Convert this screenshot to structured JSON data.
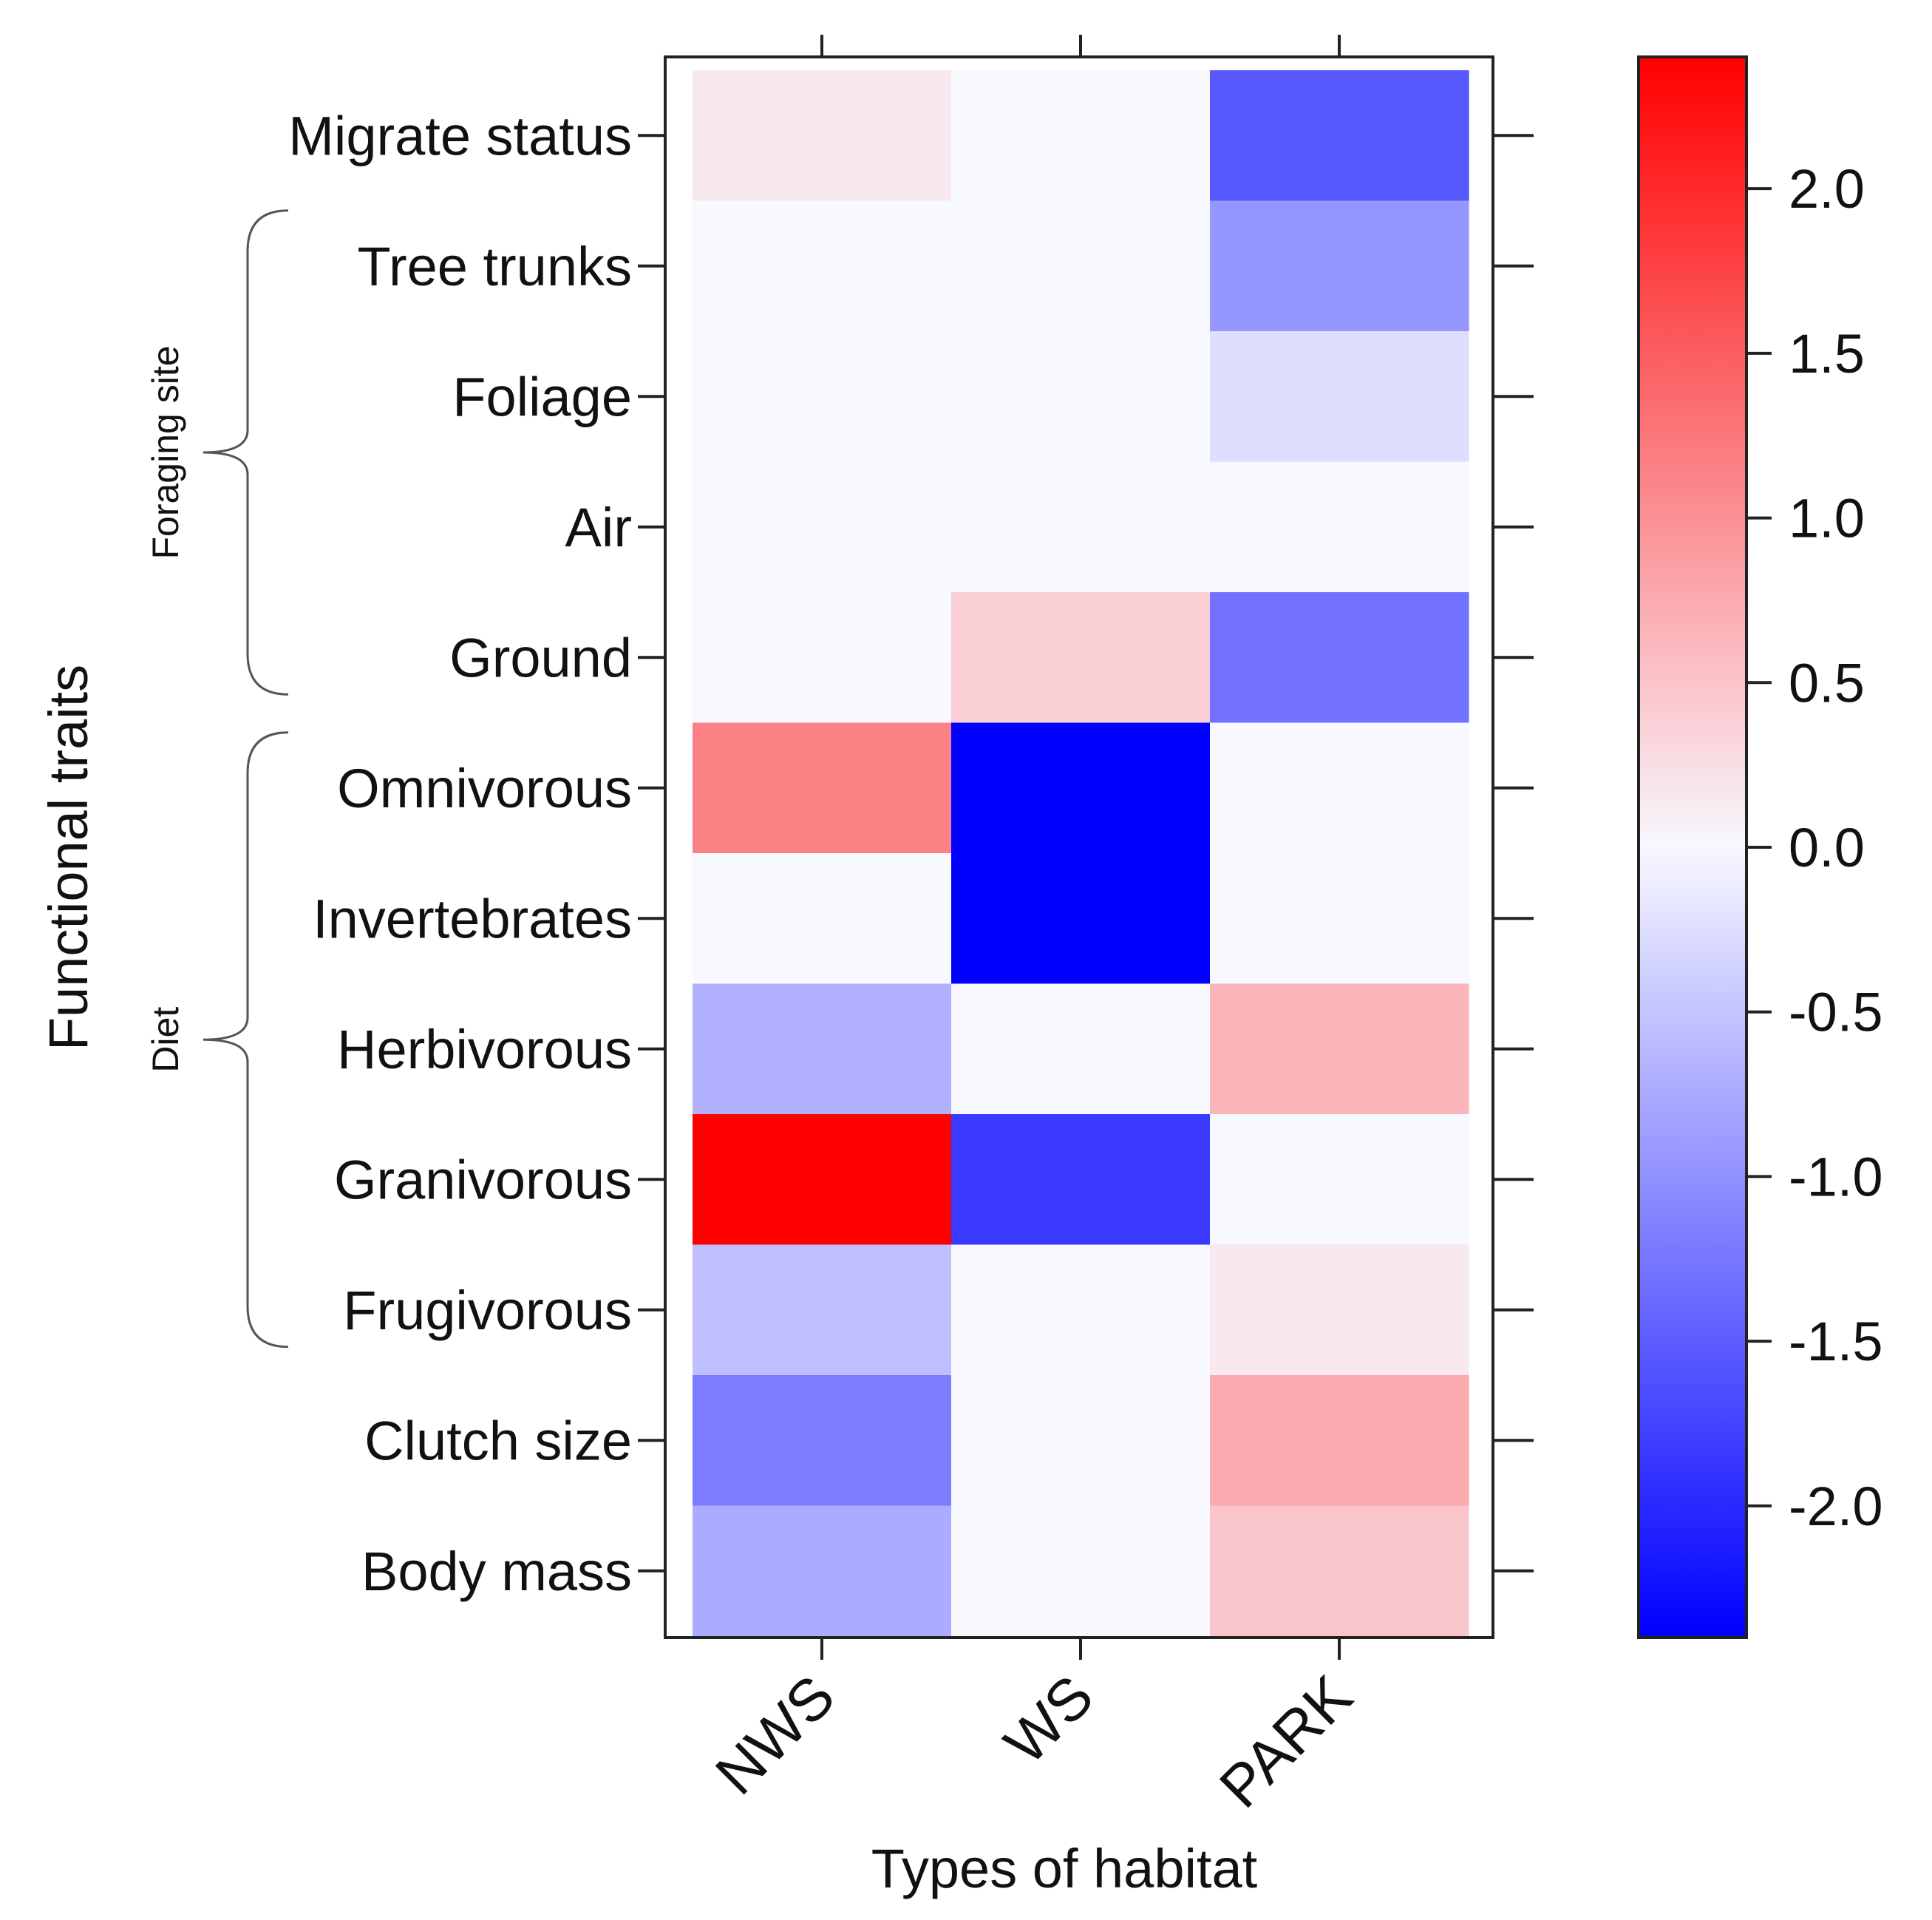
{
  "chart_data": {
    "type": "heatmap",
    "title": "",
    "xlabel": "Types of habitat",
    "ylabel": "Functional traits",
    "columns": [
      "NWS",
      "WS",
      "PARK"
    ],
    "rows": [
      "Migrate status",
      "Tree trunks",
      "Foliage",
      "Air",
      "Ground",
      "Omnivorous",
      "Invertebrates",
      "Herbivorous",
      "Granivorous",
      "Frugivorous",
      "Clutch size",
      "Body mass"
    ],
    "values": [
      [
        0.15,
        0.0,
        -1.55
      ],
      [
        0.0,
        0.0,
        -0.95
      ],
      [
        0.0,
        0.0,
        -0.25
      ],
      [
        0.0,
        0.0,
        0.0
      ],
      [
        0.0,
        0.4,
        -1.3
      ],
      [
        1.15,
        -2.4,
        0.0
      ],
      [
        0.0,
        -2.4,
        0.0
      ],
      [
        -0.7,
        0.0,
        0.65
      ],
      [
        2.4,
        -1.85,
        0.0
      ],
      [
        -0.55,
        0.0,
        0.15
      ],
      [
        -1.2,
        0.0,
        0.75
      ],
      [
        -0.75,
        0.0,
        0.5
      ]
    ],
    "groups": [
      {
        "label": "Foraging site",
        "from": "Tree trunks",
        "to": "Ground"
      },
      {
        "label": "Diet",
        "from": "Omnivorous",
        "to": "Frugivorous"
      }
    ],
    "colorbar": {
      "min": -2.4,
      "max": 2.4,
      "ticks": [
        2.0,
        1.5,
        1.0,
        0.5,
        0.0,
        -0.5,
        -1.0,
        -1.5,
        -2.0
      ],
      "tick_labels": [
        "2.0",
        "1.5",
        "1.0",
        "0.5",
        "0.0",
        "-0.5",
        "-1.0",
        "-1.5",
        "-2.0"
      ],
      "low_color": "#0000ff",
      "mid_color": "#f8f8ff",
      "high_color": "#ff0000"
    }
  }
}
